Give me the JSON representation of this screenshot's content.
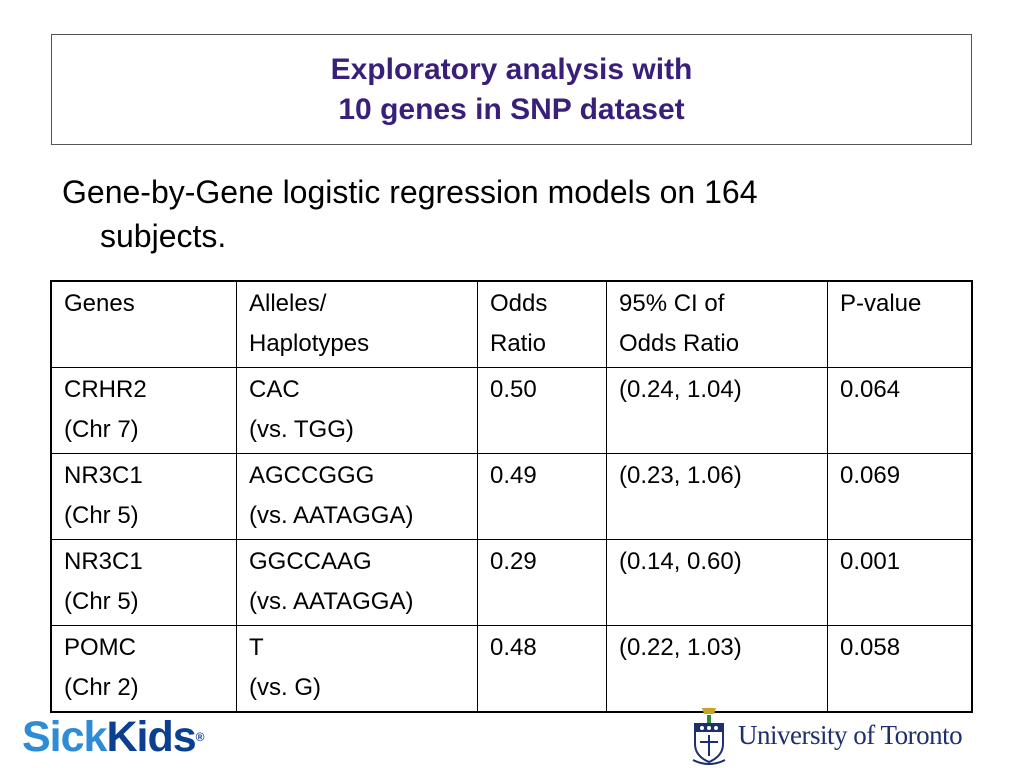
{
  "title": {
    "line1": "Exploratory analysis with",
    "line2": "10 genes in SNP dataset"
  },
  "intro": {
    "line1": "Gene-by-Gene logistic regression models on 164",
    "line2": "subjects."
  },
  "table": {
    "headers": [
      [
        "Genes",
        ""
      ],
      [
        "Alleles/",
        "Haplotypes"
      ],
      [
        "Odds",
        "Ratio"
      ],
      [
        "95% CI of",
        "Odds Ratio"
      ],
      [
        "P-value",
        ""
      ]
    ],
    "rows": [
      {
        "gene": "CRHR2",
        "chr": "(Chr 7)",
        "allele": "CAC",
        "ref": "(vs. TGG)",
        "or": "0.50",
        "ci": "(0.24, 1.04)",
        "p": "0.064"
      },
      {
        "gene": "NR3C1",
        "chr": "(Chr 5)",
        "allele": "AGCCGGG",
        "ref": "(vs. AATAGGA)",
        "or": "0.49",
        "ci": "(0.23, 1.06)",
        "p": "0.069"
      },
      {
        "gene": "NR3C1",
        "chr": "(Chr 5)",
        "allele": "GGCCAAG",
        "ref": "(vs. AATAGGA)",
        "or": "0.29",
        "ci": "(0.14, 0.60)",
        "p": "0.001"
      },
      {
        "gene": "POMC",
        "chr": "(Chr 2)",
        "allele": "T",
        "ref": "(vs. G)",
        "or": "0.48",
        "ci": "(0.22, 1.03)",
        "p": "0.058"
      }
    ]
  },
  "logos": {
    "sickkids_part1": "Sick",
    "sickkids_part2": "Kids",
    "sickkids_mark": "®",
    "uoft": "University of Toronto"
  },
  "colors": {
    "title": "#3a1f7a",
    "sickkids_light": "#2e8bd6",
    "sickkids_dark": "#0b3f8f",
    "uoft": "#1e2f6e"
  }
}
